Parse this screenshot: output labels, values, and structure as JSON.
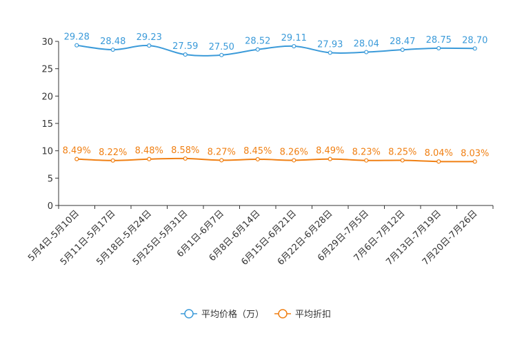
{
  "chart_data": {
    "type": "line",
    "categories": [
      "5月4日-5月10日",
      "5月11日-5月17日",
      "5月18日-5月24日",
      "5月25日-5月31日",
      "6月1日-6月7日",
      "6月8日-6月14日",
      "6月15日-6月21日",
      "6月22日-6月28日",
      "6月29日-7月5日",
      "7月6日-7月12日",
      "7月13日-7月19日",
      "7月20日-7月26日"
    ],
    "ylim": [
      0,
      30
    ],
    "yticks": [
      0,
      5,
      10,
      15,
      20,
      25,
      30
    ],
    "series": [
      {
        "name": "平均价格（万）",
        "color": "#3a9ad9",
        "values": [
          29.28,
          28.48,
          29.23,
          27.59,
          27.5,
          28.52,
          29.11,
          27.93,
          28.04,
          28.47,
          28.75,
          28.7
        ],
        "labels": [
          "29.28",
          "28.48",
          "29.23",
          "27.59",
          "27.50",
          "28.52",
          "29.11",
          "27.93",
          "28.04",
          "28.47",
          "28.75",
          "28.70"
        ]
      },
      {
        "name": "平均折扣",
        "color": "#f07f12",
        "values": [
          8.49,
          8.22,
          8.48,
          8.58,
          8.27,
          8.45,
          8.26,
          8.49,
          8.23,
          8.25,
          8.04,
          8.03
        ],
        "labels": [
          "8.49%",
          "8.22%",
          "8.48%",
          "8.58%",
          "8.27%",
          "8.45%",
          "8.26%",
          "8.49%",
          "8.23%",
          "8.25%",
          "8.04%",
          "8.03%"
        ]
      }
    ],
    "legend_position": "bottom-center"
  }
}
